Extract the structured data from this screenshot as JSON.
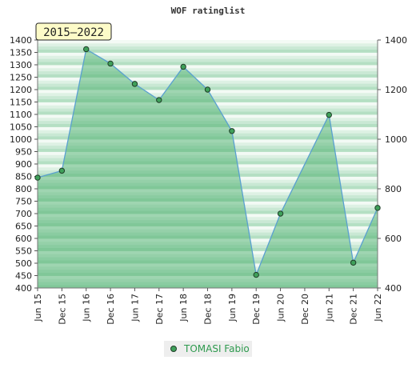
{
  "chart_data": {
    "type": "area",
    "title": "WOF ratinglist",
    "period_label": "2015–2022",
    "x": [
      "Jun 15",
      "Dec 15",
      "Jun 16",
      "Dec 16",
      "Jun 17",
      "Dec 17",
      "Jun 18",
      "Dec 18",
      "Jun 19",
      "Dec 19",
      "Jun 20",
      "Dec 20",
      "Jun 21",
      "Dec 21",
      "Jun 22"
    ],
    "series": [
      {
        "name": "TOMASI Fabio",
        "values": [
          845,
          873,
          1363,
          1305,
          1223,
          1158,
          1292,
          1200,
          1033,
          453,
          700,
          null,
          1098,
          502,
          723
        ]
      }
    ],
    "connect_gaps": true,
    "ylim": [
      400,
      1400
    ],
    "left_ticks": [
      400,
      450,
      500,
      550,
      600,
      650,
      700,
      750,
      800,
      850,
      900,
      950,
      1000,
      1050,
      1100,
      1150,
      1200,
      1250,
      1300,
      1350,
      1400
    ],
    "right_ticks": [
      400,
      600,
      800,
      1000,
      1200,
      1400
    ],
    "legend_position": "bottom",
    "colors": {
      "line": "#5aa0d0",
      "fill": "#4caf6e",
      "marker": "#3fa05a",
      "band_dark": "#b4dfc3",
      "band_light": "#f3faf5"
    }
  }
}
